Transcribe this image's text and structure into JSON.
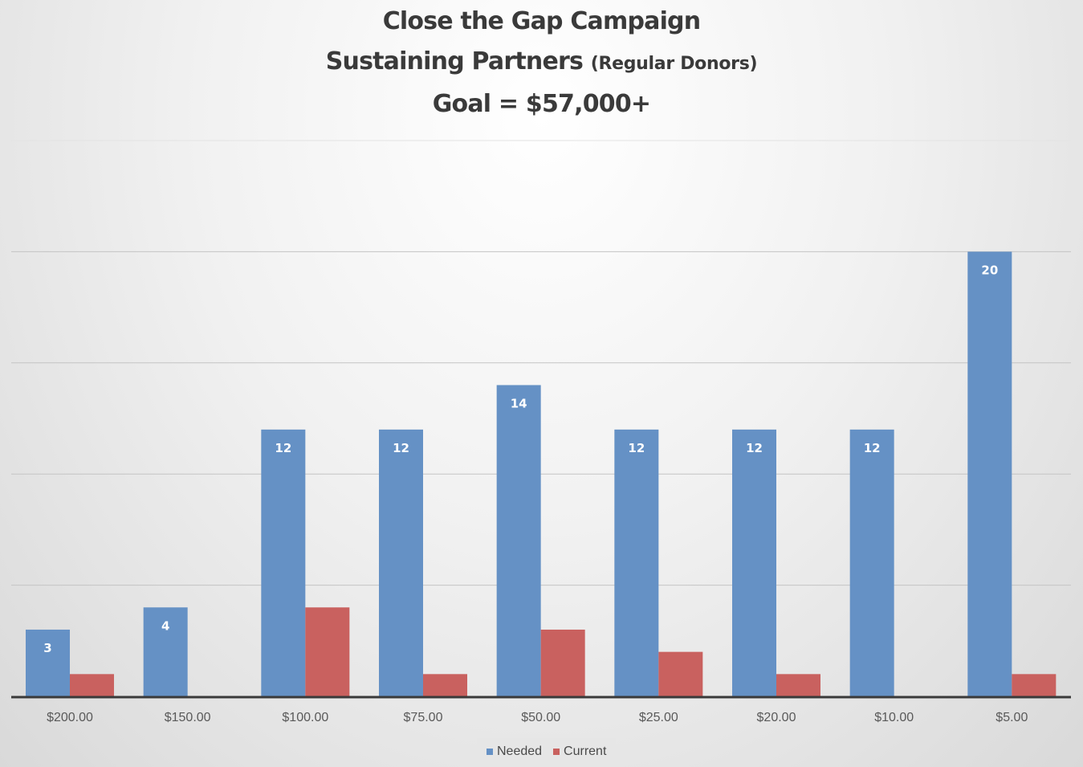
{
  "titles": {
    "line1": "Close the Gap Campaign",
    "line2_main": "Sustaining Partners",
    "line2_small": "(Regular Donors)",
    "line3": "Goal = $57,000+"
  },
  "chart_data": {
    "type": "bar",
    "title": "Close the Gap Campaign Sustaining Partners (Regular Donors) Goal = $57,000+",
    "categories": [
      "$200.00",
      "$150.00",
      "$100.00",
      "$75.00",
      "$50.00",
      "$25.00",
      "$20.00",
      "$10.00",
      "$5.00"
    ],
    "series": [
      {
        "name": "Needed",
        "color": "#6591c5",
        "values": [
          3,
          4,
          12,
          12,
          14,
          12,
          12,
          12,
          20
        ],
        "labels": [
          "3",
          "4",
          "12",
          "12",
          "14",
          "12",
          "12",
          "12",
          "20"
        ]
      },
      {
        "name": "Current",
        "color": "#c9615f",
        "values": [
          1,
          0,
          4,
          1,
          3,
          2,
          1,
          0,
          1
        ]
      }
    ],
    "ylim": [
      0,
      25
    ],
    "grid": true,
    "legend_position": "bottom"
  }
}
